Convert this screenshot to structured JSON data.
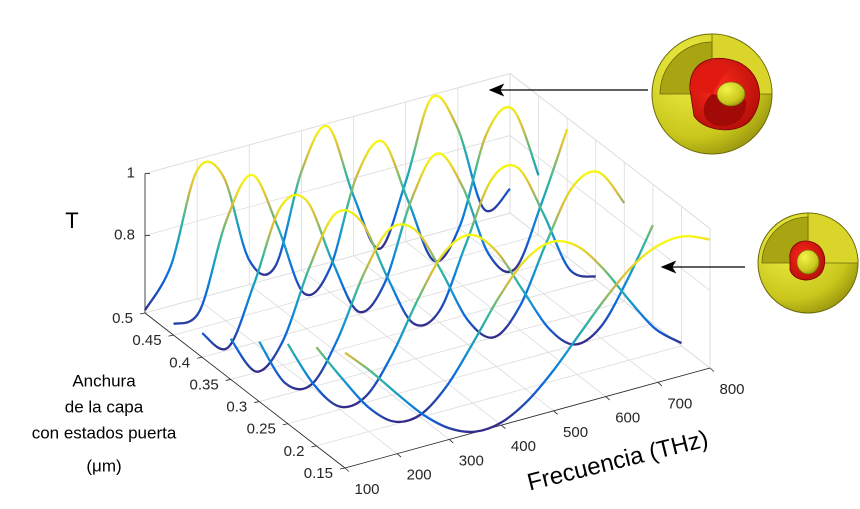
{
  "chart_data": {
    "type": "waterfall3d",
    "zlabel": "T",
    "xlabel": "Frecuencia (THz)",
    "ylabel": [
      "Anchura",
      "de la capa",
      "con estados puerta",
      "(μm)"
    ],
    "x": [
      100,
      150,
      200,
      250,
      300,
      350,
      400,
      450,
      500,
      550,
      600,
      650,
      700,
      750,
      800
    ],
    "series": [
      {
        "width": 0.15,
        "values": [
          0.922,
          0.838,
          0.743,
          0.653,
          0.586,
          0.552,
          0.559,
          0.605,
          0.681,
          0.775,
          0.868,
          0.946,
          0.991,
          0.998,
          0.964
        ]
      },
      {
        "width": 0.2,
        "values": [
          0.868,
          0.743,
          0.628,
          0.559,
          0.559,
          0.628,
          0.743,
          0.868,
          0.964,
          1.0,
          0.964,
          0.868,
          0.743,
          0.628,
          0.559
        ]
      },
      {
        "width": 0.25,
        "values": [
          0.807,
          0.653,
          0.559,
          0.57,
          0.681,
          0.838,
          0.964,
          0.998,
          0.922,
          0.775,
          0.628,
          0.552,
          0.586,
          0.711,
          0.868
        ]
      },
      {
        "width": 0.3,
        "values": [
          0.743,
          0.586,
          0.559,
          0.681,
          0.868,
          0.991,
          0.964,
          0.807,
          0.628,
          0.55,
          0.628,
          0.807,
          0.964,
          0.991,
          0.868
        ]
      },
      {
        "width": 0.35,
        "values": [
          0.681,
          0.552,
          0.628,
          0.838,
          0.991,
          0.945,
          0.743,
          0.57,
          0.586,
          0.775,
          0.964,
          0.98,
          0.807,
          0.605,
          0.559
        ]
      },
      {
        "width": 0.4,
        "values": [
          0.628,
          0.559,
          0.743,
          0.964,
          0.964,
          0.743,
          0.559,
          0.628,
          0.868,
          1.0,
          0.868,
          0.628,
          0.559,
          0.743,
          0.964
        ]
      },
      {
        "width": 0.45,
        "values": [
          0.586,
          0.605,
          0.868,
          0.998,
          0.807,
          0.57,
          0.628,
          0.897,
          0.991,
          0.775,
          0.559,
          0.653,
          0.922,
          0.98,
          0.743
        ]
      },
      {
        "width": 0.5,
        "values": [
          0.559,
          0.681,
          0.964,
          0.922,
          0.628,
          0.586,
          0.868,
          0.991,
          0.743,
          0.55,
          0.743,
          0.991,
          0.868,
          0.586,
          0.628
        ]
      }
    ],
    "colormap": [
      "#352a87",
      "#0d66dd",
      "#1496ce",
      "#38b89a",
      "#d8ba3d",
      "#f9fb0e"
    ],
    "xlim": [
      100,
      800
    ],
    "xticks": [
      100,
      200,
      300,
      400,
      500,
      600,
      700,
      800
    ],
    "ylim": [
      0.15,
      0.5
    ],
    "yticks": [
      0.15,
      0.2,
      0.25,
      0.3,
      0.35,
      0.4,
      0.45,
      0.5
    ],
    "zlim": [
      0.55,
      1
    ],
    "zticks": [
      0.8,
      1
    ],
    "grid": true
  }
}
